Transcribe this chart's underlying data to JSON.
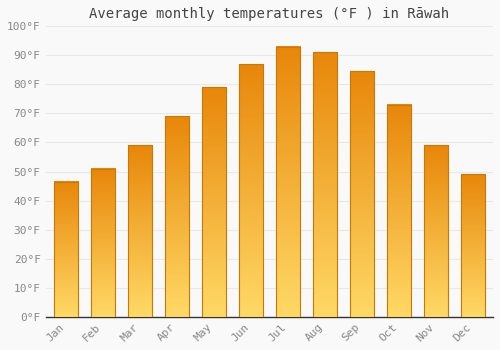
{
  "title": "Average monthly temperatures (°F ) in Rāwah",
  "months": [
    "Jan",
    "Feb",
    "Mar",
    "Apr",
    "May",
    "Jun",
    "Jul",
    "Aug",
    "Sep",
    "Oct",
    "Nov",
    "Dec"
  ],
  "values": [
    46.5,
    51,
    59,
    69,
    79,
    87,
    93,
    91,
    84.5,
    73,
    59,
    49
  ],
  "bar_color_main": "#FFA500",
  "bar_color_light": "#FFD966",
  "bar_color_dark": "#E8870A",
  "ylim": [
    0,
    100
  ],
  "yticks": [
    0,
    10,
    20,
    30,
    40,
    50,
    60,
    70,
    80,
    90,
    100
  ],
  "ytick_labels": [
    "0°F",
    "10°F",
    "20°F",
    "30°F",
    "40°F",
    "50°F",
    "60°F",
    "70°F",
    "80°F",
    "90°F",
    "100°F"
  ],
  "background_color": "#f9f9f9",
  "grid_color": "#e8e8e8",
  "title_fontsize": 10,
  "tick_fontsize": 8,
  "tick_color": "#888888"
}
